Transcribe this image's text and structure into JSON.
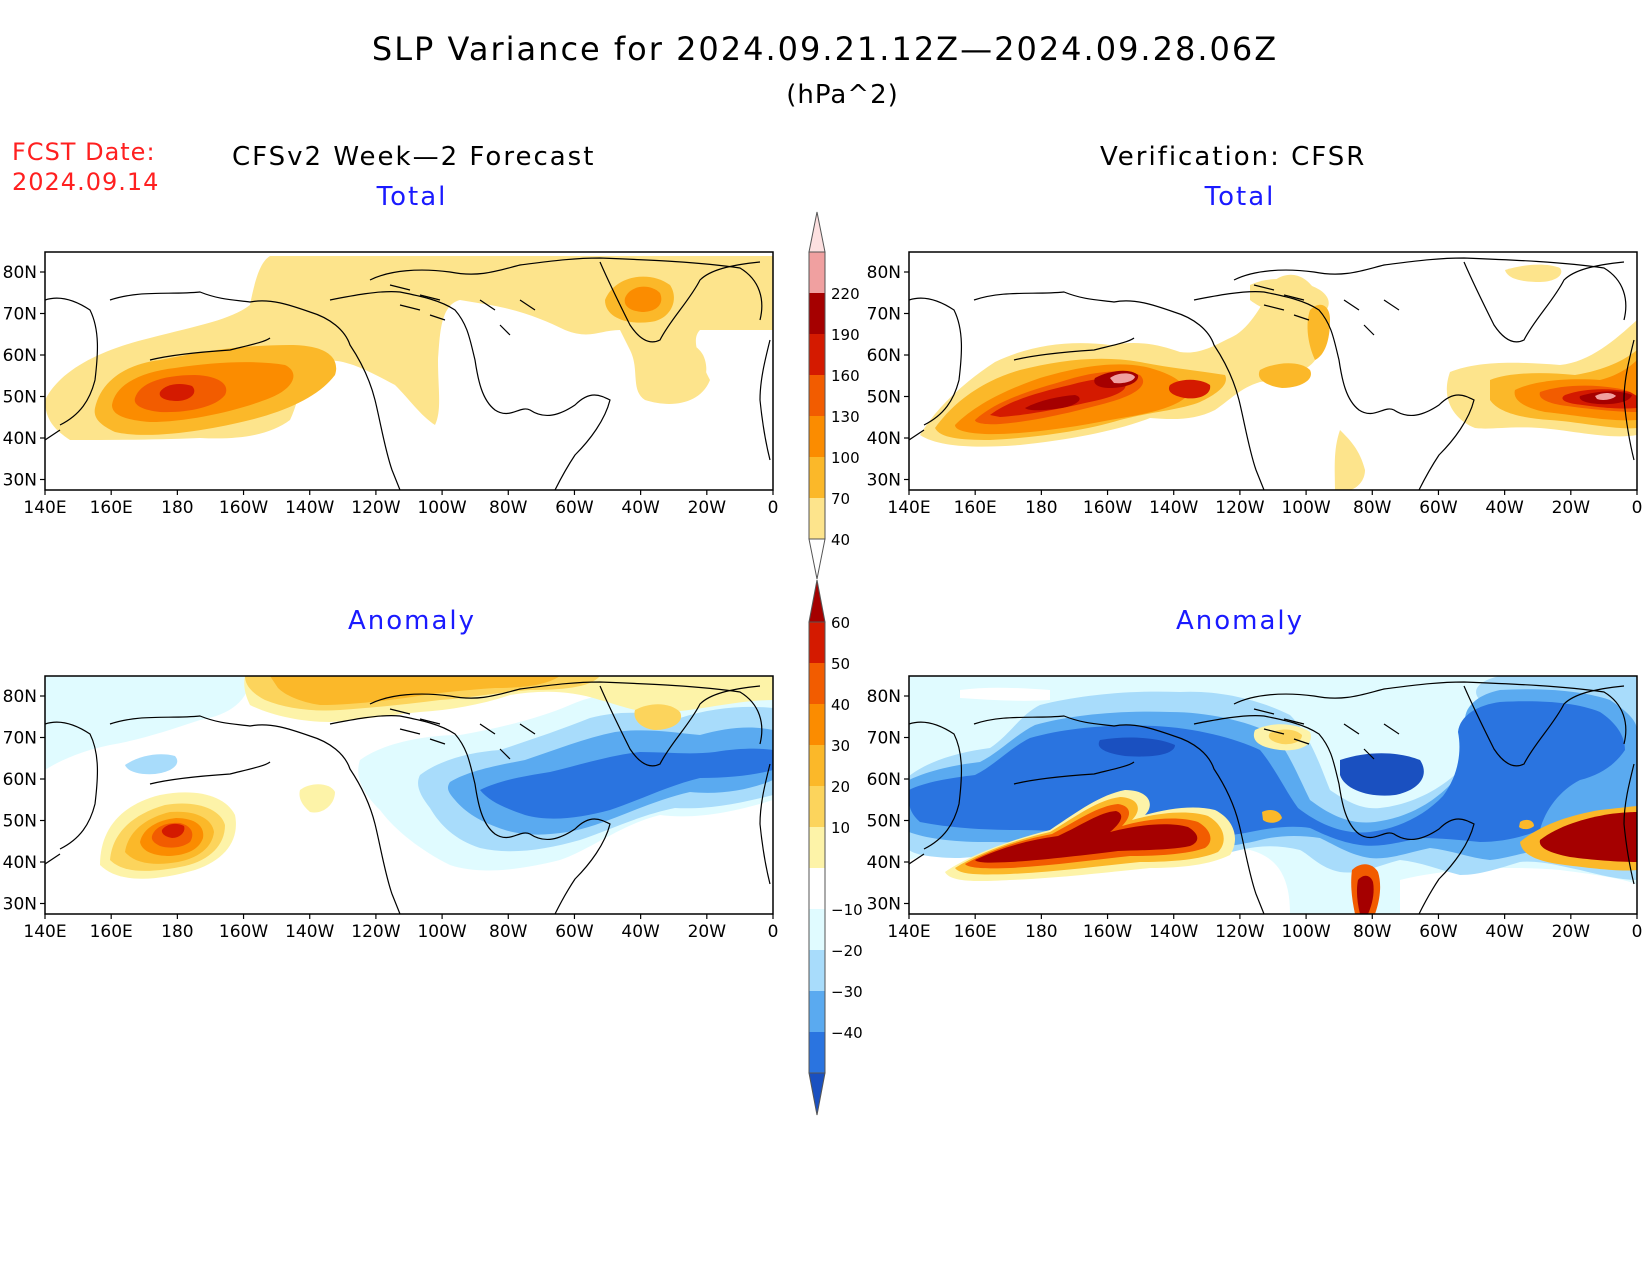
{
  "header": {
    "title": "SLP Variance for 2024.09.21.12Z—2024.09.28.06Z",
    "units": "(hPa^2)",
    "fcst_label": "FCST Date:",
    "fcst_date": "2024.09.14",
    "left_heading": "CFSv2 Week—2 Forecast",
    "right_heading": "Verification: CFSR"
  },
  "panels": [
    {
      "id": "forecast-total",
      "title": "Total"
    },
    {
      "id": "verification-total",
      "title": "Total"
    },
    {
      "id": "forecast-anomaly",
      "title": "Anomaly"
    },
    {
      "id": "verification-anomaly",
      "title": "Anomaly"
    }
  ],
  "axes": {
    "lon_labels": [
      "140E",
      "160E",
      "180",
      "160W",
      "140W",
      "120W",
      "100W",
      "80W",
      "60W",
      "40W",
      "20W",
      "0"
    ],
    "lat_labels": [
      "80N",
      "70N",
      "60N",
      "50N",
      "40N",
      "30N"
    ]
  },
  "colorbars": {
    "total": {
      "levels": [
        "40",
        "70",
        "100",
        "130",
        "160",
        "190",
        "220"
      ],
      "colors": [
        "#fde48c",
        "#fbb829",
        "#fb8c00",
        "#f25c00",
        "#d41a00",
        "#a50000",
        "#f0a0a0",
        "#fde0e0"
      ]
    },
    "anomaly": {
      "levels": [
        "60",
        "50",
        "40",
        "30",
        "20",
        "10",
        "−10",
        "−20",
        "−30",
        "−40"
      ],
      "colors": [
        "#a50000",
        "#d41a00",
        "#f25c00",
        "#fb8c00",
        "#fbb829",
        "#fcd45c",
        "#fdf3a8",
        "#ffffff",
        "#e0fbff",
        "#a8dcfb",
        "#5aaaf0",
        "#2a74e0",
        "#1a50c0"
      ]
    }
  },
  "palette": {
    "title_blue": "#1a1aff",
    "fcst_red": "#ff2020"
  }
}
